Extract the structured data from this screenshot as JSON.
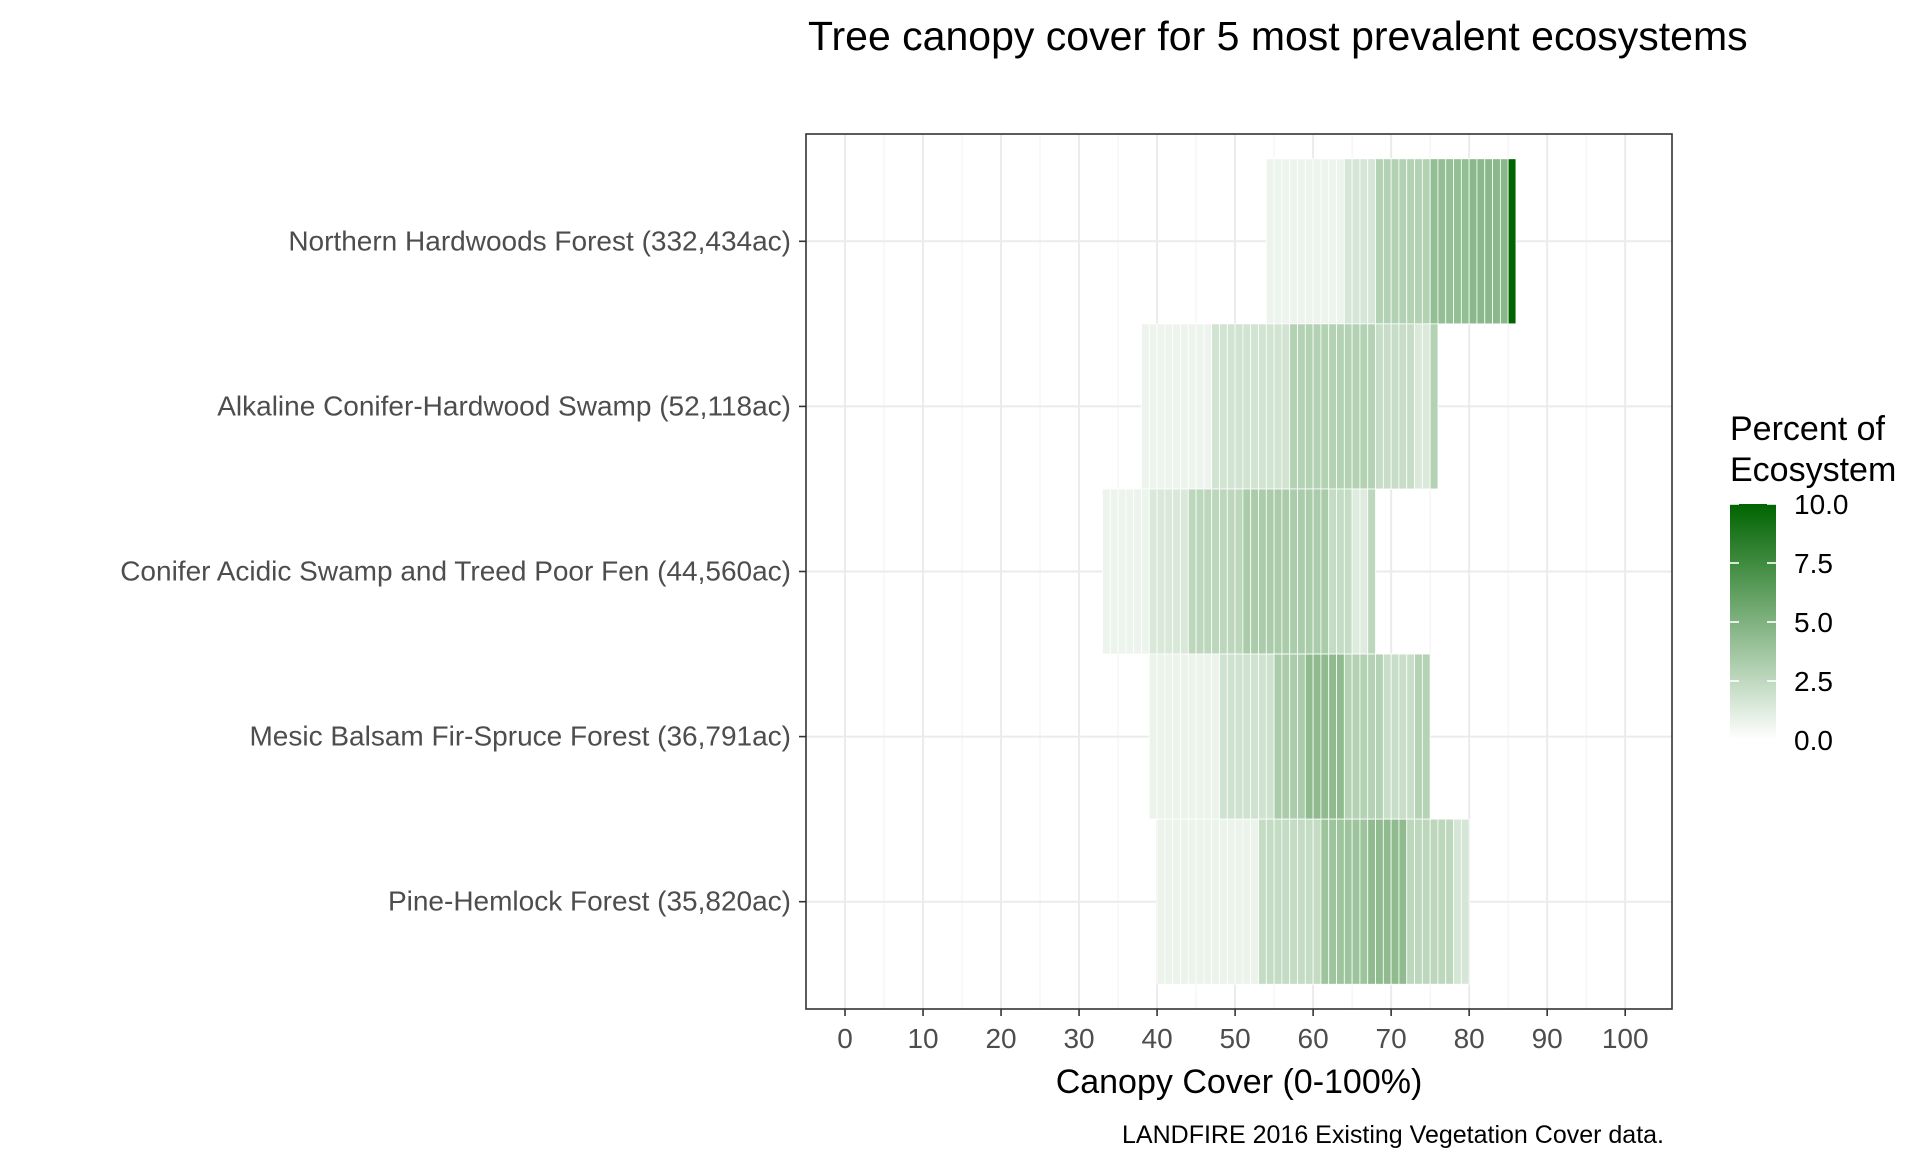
{
  "chart_data": {
    "type": "heatmap",
    "title": "Tree canopy cover for 5 most prevalent ecosystems",
    "xlabel": "Canopy Cover (0-100%)",
    "ylabel": "",
    "caption": "LANDFIRE 2016 Existing Vegetation Cover data.",
    "xlim": [
      -5,
      106
    ],
    "x_ticks": [
      0,
      10,
      20,
      30,
      40,
      50,
      60,
      70,
      80,
      90,
      100
    ],
    "grid": true,
    "legend": {
      "title_lines": [
        "Percent of",
        "Ecosystem"
      ],
      "placement": "right",
      "ticks": [
        "10.0",
        "7.5",
        "5.0",
        "2.5",
        "0.0"
      ],
      "tick_values": [
        10,
        7.5,
        5,
        2.5,
        0
      ],
      "range": [
        0,
        10
      ],
      "low_color": "#ffffff",
      "high_color": "#006400"
    },
    "categories": [
      "Northern Hardwoods Forest (332,434ac)",
      "Alkaline Conifer-Hardwood Swamp (52,118ac)",
      "Conifer Acidic Swamp and Treed Poor Fen (44,560ac)",
      "Mesic Balsam Fir-Spruce Forest (36,791ac)",
      "Pine-Hemlock Forest (35,820ac)"
    ],
    "series": [
      {
        "name": "Northern Hardwoods Forest (332,434ac)",
        "segments": [
          {
            "from": 54,
            "to": 64,
            "value": 0.7
          },
          {
            "from": 64,
            "to": 68,
            "value": 1.6
          },
          {
            "from": 68,
            "to": 75,
            "value": 3.0
          },
          {
            "from": 75,
            "to": 80,
            "value": 4.2
          },
          {
            "from": 80,
            "to": 85,
            "value": 4.6
          },
          {
            "from": 85,
            "to": 86,
            "value": 10.0
          }
        ]
      },
      {
        "name": "Alkaline Conifer-Hardwood Swamp (52,118ac)",
        "segments": [
          {
            "from": 38,
            "to": 47,
            "value": 0.7
          },
          {
            "from": 47,
            "to": 57,
            "value": 1.8
          },
          {
            "from": 57,
            "to": 68,
            "value": 3.0
          },
          {
            "from": 68,
            "to": 73,
            "value": 2.2
          },
          {
            "from": 73,
            "to": 75,
            "value": 1.4
          },
          {
            "from": 75,
            "to": 76,
            "value": 3.0
          }
        ]
      },
      {
        "name": "Conifer Acidic Swamp and Treed Poor Fen (44,560ac)",
        "segments": [
          {
            "from": 33,
            "to": 39,
            "value": 0.7
          },
          {
            "from": 39,
            "to": 44,
            "value": 1.5
          },
          {
            "from": 44,
            "to": 51,
            "value": 2.6
          },
          {
            "from": 51,
            "to": 62,
            "value": 3.3
          },
          {
            "from": 62,
            "to": 65,
            "value": 2.3
          },
          {
            "from": 65,
            "to": 67,
            "value": 1.3
          },
          {
            "from": 67,
            "to": 68,
            "value": 2.6
          }
        ]
      },
      {
        "name": "Mesic Balsam Fir-Spruce Forest (36,791ac)",
        "segments": [
          {
            "from": 39,
            "to": 48,
            "value": 0.8
          },
          {
            "from": 48,
            "to": 55,
            "value": 1.9
          },
          {
            "from": 55,
            "to": 59,
            "value": 3.3
          },
          {
            "from": 59,
            "to": 64,
            "value": 4.4
          },
          {
            "from": 64,
            "to": 69,
            "value": 3.0
          },
          {
            "from": 69,
            "to": 73,
            "value": 2.1
          },
          {
            "from": 73,
            "to": 75,
            "value": 2.9
          }
        ]
      },
      {
        "name": "Pine-Hemlock Forest (35,820ac)",
        "segments": [
          {
            "from": 40,
            "to": 53,
            "value": 0.8
          },
          {
            "from": 53,
            "to": 61,
            "value": 2.3
          },
          {
            "from": 61,
            "to": 67,
            "value": 3.8
          },
          {
            "from": 67,
            "to": 72,
            "value": 4.4
          },
          {
            "from": 72,
            "to": 78,
            "value": 2.6
          },
          {
            "from": 78,
            "to": 80,
            "value": 1.6
          }
        ]
      }
    ]
  }
}
